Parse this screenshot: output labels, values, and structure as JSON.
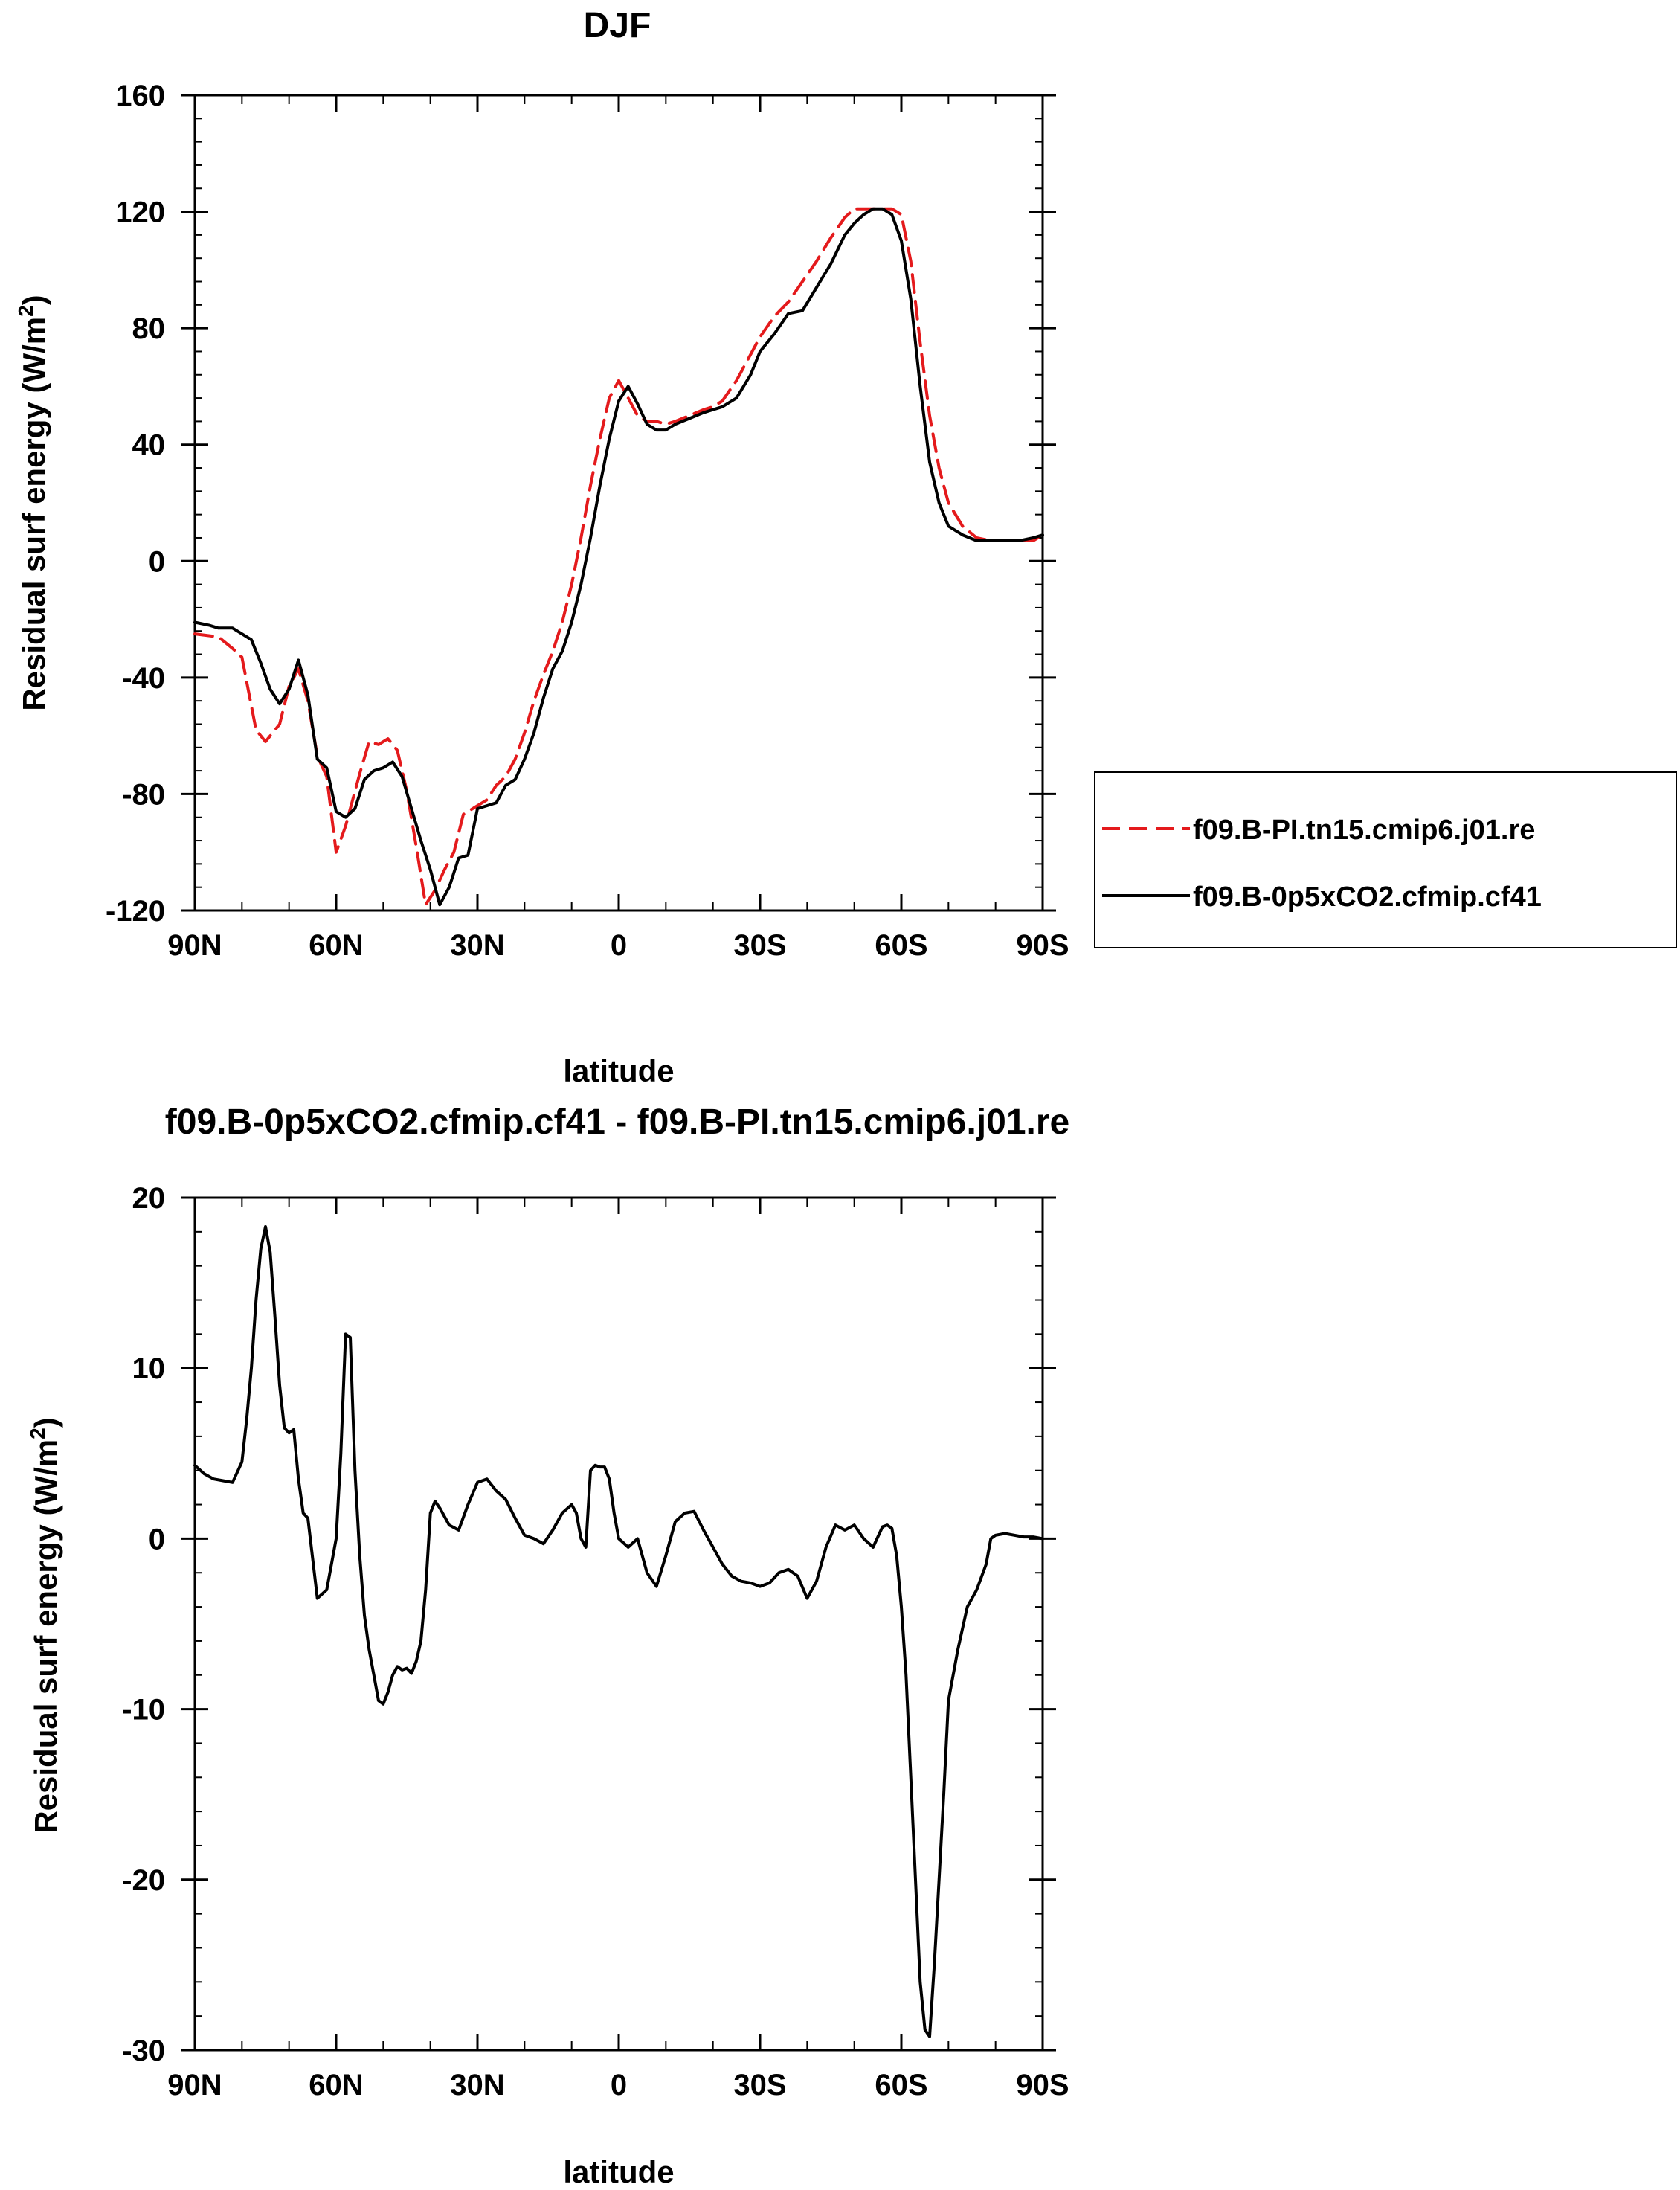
{
  "chart_data": [
    {
      "type": "line",
      "title": "DJF",
      "xlabel": "latitude",
      "ylabel": "Residual surf energy (W/m",
      "ylabel_sup": "2",
      "ylabel_close": ")",
      "xlim": [
        90,
        -90
      ],
      "ylim": [
        -120,
        160
      ],
      "xticks": [
        90,
        60,
        30,
        0,
        -30,
        -60,
        -90
      ],
      "xtick_labels": [
        "90N",
        "60N",
        "30N",
        "0",
        "30S",
        "60S",
        "90S"
      ],
      "yticks": [
        -120,
        -80,
        -40,
        0,
        40,
        80,
        120,
        160
      ],
      "ytick_labels": [
        "-120",
        "-80",
        "-40",
        "0",
        "40",
        "80",
        "120",
        "160"
      ],
      "legend_position": "right",
      "series": [
        {
          "name": "f09.B-PI.tn15.cmip6.j01.re",
          "color": "#e41a1c",
          "dash": "dashed",
          "x": [
            90,
            85,
            82,
            80,
            77,
            75,
            72,
            70,
            68,
            66,
            64,
            62,
            60,
            58,
            55,
            53,
            51,
            49,
            47,
            45,
            43,
            41,
            39,
            37,
            35,
            33,
            30,
            28,
            26,
            24,
            22,
            20,
            18,
            16,
            14,
            12,
            10,
            8,
            6,
            4,
            2,
            0,
            -2,
            -4,
            -6,
            -8,
            -10,
            -12,
            -15,
            -18,
            -20,
            -22,
            -25,
            -28,
            -30,
            -33,
            -36,
            -39,
            -42,
            -45,
            -48,
            -50,
            -52,
            -55,
            -58,
            -60,
            -62,
            -64,
            -66,
            -68,
            -70,
            -73,
            -76,
            -79,
            -82,
            -85,
            -88,
            -90
          ],
          "y": [
            -25,
            -26,
            -30,
            -33,
            -58,
            -62,
            -56,
            -43,
            -37,
            -48,
            -67,
            -74,
            -100,
            -91,
            -73,
            -62,
            -63,
            -61,
            -65,
            -79,
            -98,
            -118,
            -113,
            -106,
            -100,
            -87,
            -84,
            -82,
            -77,
            -74,
            -68,
            -59,
            -48,
            -39,
            -31,
            -21,
            -8,
            8,
            26,
            42,
            56,
            62,
            56,
            50,
            48,
            48,
            47,
            48,
            50,
            52,
            53,
            55,
            62,
            71,
            77,
            84,
            89,
            96,
            103,
            111,
            118,
            121,
            121,
            121,
            121,
            119,
            103,
            75,
            50,
            32,
            20,
            12,
            8,
            7,
            7,
            7,
            7,
            9
          ]
        },
        {
          "name": "f09.B-0p5xCO2.cfmip.cf41",
          "color": "#000000",
          "dash": "solid",
          "x": [
            90,
            87,
            85,
            82,
            80,
            78,
            76,
            74,
            72,
            70,
            68,
            66,
            64,
            62,
            60,
            58,
            56,
            54,
            52,
            50,
            48,
            46,
            44,
            42,
            40,
            38,
            36,
            34,
            32,
            30,
            28,
            26,
            24,
            22,
            20,
            18,
            16,
            14,
            12,
            10,
            8,
            6,
            4,
            2,
            0,
            -2,
            -4,
            -6,
            -8,
            -10,
            -12,
            -15,
            -18,
            -20,
            -22,
            -25,
            -28,
            -30,
            -33,
            -36,
            -39,
            -42,
            -45,
            -48,
            -50,
            -52,
            -54,
            -56,
            -58,
            -60,
            -62,
            -64,
            -66,
            -68,
            -70,
            -73,
            -76,
            -79,
            -82,
            -85,
            -88,
            -90
          ],
          "y": [
            -21,
            -22,
            -23,
            -23,
            -25,
            -27,
            -35,
            -44,
            -49,
            -44,
            -34,
            -46,
            -68,
            -71,
            -86,
            -88,
            -85,
            -75,
            -72,
            -71,
            -69,
            -74,
            -85,
            -96,
            -106,
            -118,
            -112,
            -102,
            -101,
            -85,
            -84,
            -83,
            -77,
            -75,
            -68,
            -59,
            -47,
            -37,
            -31,
            -21,
            -8,
            8,
            26,
            42,
            55,
            60,
            54,
            47,
            45,
            45,
            47,
            49,
            51,
            52,
            53,
            56,
            64,
            72,
            78,
            85,
            86,
            94,
            102,
            112,
            116,
            119,
            121,
            121,
            119,
            110,
            90,
            60,
            34,
            20,
            12,
            9,
            7,
            7,
            7,
            7,
            8,
            9
          ]
        }
      ]
    },
    {
      "type": "line",
      "title": "f09.B-0p5xCO2.cfmip.cf41 - f09.B-PI.tn15.cmip6.j01.re",
      "xlabel": "latitude",
      "ylabel": "Residual surf energy (W/m",
      "ylabel_sup": "2",
      "ylabel_close": ")",
      "xlim": [
        90,
        -90
      ],
      "ylim": [
        -30,
        20
      ],
      "xticks": [
        90,
        60,
        30,
        0,
        -30,
        -60,
        -90
      ],
      "xtick_labels": [
        "90N",
        "60N",
        "30N",
        "0",
        "30S",
        "60S",
        "90S"
      ],
      "yticks": [
        -30,
        -20,
        -10,
        0,
        10,
        20
      ],
      "ytick_labels": [
        "-30",
        "-20",
        "-10",
        "0",
        "10",
        "20"
      ],
      "series": [
        {
          "name": "",
          "color": "#000000",
          "dash": "solid",
          "x": [
            90,
            88,
            86,
            84,
            82,
            80,
            79,
            78,
            77,
            76,
            75,
            74,
            73,
            72,
            71,
            70,
            69,
            68,
            67,
            66,
            64,
            62,
            61,
            60,
            59,
            58,
            57,
            56,
            55,
            54,
            53,
            52,
            51,
            50,
            49,
            48,
            47,
            46,
            45,
            44,
            43,
            42,
            41,
            40,
            39,
            38,
            36,
            34,
            32,
            30,
            28,
            26,
            24,
            22,
            20,
            18,
            16,
            14,
            12,
            10,
            9,
            8,
            7,
            6,
            5,
            4,
            3,
            2,
            1,
            0,
            -2,
            -4,
            -6,
            -8,
            -10,
            -12,
            -14,
            -16,
            -18,
            -20,
            -22,
            -24,
            -26,
            -28,
            -30,
            -32,
            -34,
            -36,
            -38,
            -40,
            -42,
            -44,
            -46,
            -48,
            -50,
            -52,
            -54,
            -56,
            -57,
            -58,
            -59,
            -60,
            -61,
            -62,
            -63,
            -64,
            -65,
            -66,
            -67,
            -68,
            -69,
            -70,
            -72,
            -74,
            -76,
            -78,
            -79,
            -80,
            -82,
            -84,
            -86,
            -88,
            -90
          ],
          "y": [
            4.3,
            3.8,
            3.5,
            3.4,
            3.3,
            4.5,
            7,
            10,
            14,
            17,
            18.3,
            16.8,
            13,
            9,
            6.5,
            6.2,
            6.4,
            3.5,
            1.5,
            1.2,
            -3.5,
            -3,
            -1.5,
            0,
            5,
            12,
            11.8,
            4,
            -1,
            -4.5,
            -6.5,
            -8,
            -9.5,
            -9.7,
            -9,
            -8,
            -7.5,
            -7.7,
            -7.6,
            -7.9,
            -7.2,
            -6,
            -3,
            1.5,
            2.2,
            1.8,
            0.8,
            0.5,
            2,
            3.3,
            3.5,
            2.8,
            2.3,
            1.2,
            0.2,
            0,
            -0.3,
            0.5,
            1.5,
            2,
            1.5,
            0,
            -0.5,
            4,
            4.3,
            4.2,
            4.2,
            3.5,
            1.5,
            0,
            -0.5,
            0,
            -2,
            -2.8,
            -1,
            1,
            1.5,
            1.6,
            0.5,
            -0.5,
            -1.5,
            -2.2,
            -2.5,
            -2.6,
            -2.8,
            -2.6,
            -2,
            -1.8,
            -2.2,
            -3.5,
            -2.5,
            -0.5,
            0.8,
            0.5,
            0.8,
            0,
            -0.5,
            0.7,
            0.8,
            0.6,
            -1,
            -4,
            -8,
            -14,
            -20,
            -26,
            -28.8,
            -29.2,
            -25,
            -20,
            -15,
            -9.5,
            -6.5,
            -4,
            -3,
            -1.5,
            0,
            0.2,
            0.3,
            0.2,
            0.1,
            0.1,
            0
          ]
        }
      ]
    }
  ]
}
